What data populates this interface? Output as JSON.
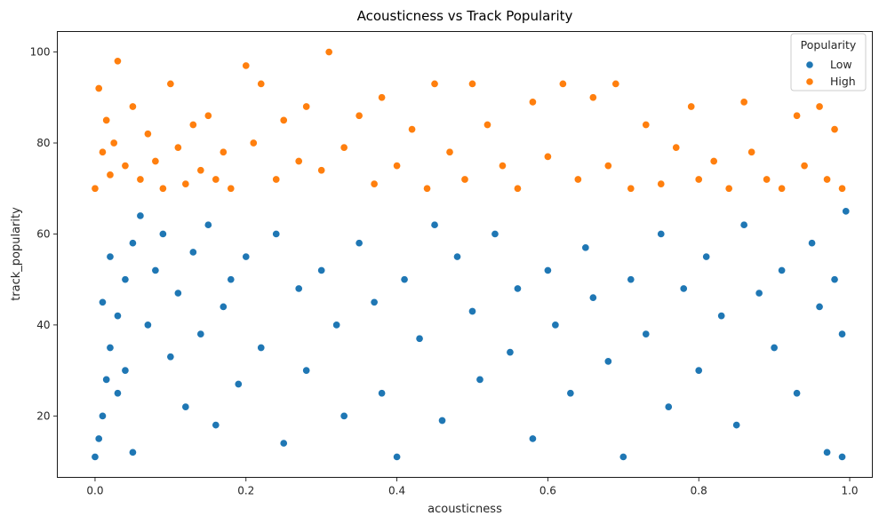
{
  "chart_data": {
    "type": "scatter",
    "title": "Acousticness vs Track Popularity",
    "xlabel": "acousticness",
    "ylabel": "track_popularity",
    "xlim": [
      -0.05,
      1.03
    ],
    "ylim": [
      6.5,
      104.5
    ],
    "xticks": [
      0.0,
      0.2,
      0.4,
      0.6,
      0.8,
      1.0
    ],
    "xtick_labels": [
      "0.0",
      "0.2",
      "0.4",
      "0.6",
      "0.8",
      "1.0"
    ],
    "yticks": [
      20,
      40,
      60,
      80,
      100
    ],
    "ytick_labels": [
      "20",
      "40",
      "60",
      "80",
      "100"
    ],
    "grid": false,
    "legend": {
      "title": "Popularity",
      "placement": "top-right",
      "entries": [
        {
          "label": "Low",
          "color": "#1f77b4"
        },
        {
          "label": "High",
          "color": "#ff7f0e"
        }
      ]
    },
    "series": [
      {
        "name": "Low",
        "color": "#1f77b4",
        "points": [
          [
            0.0,
            11
          ],
          [
            0.005,
            15
          ],
          [
            0.01,
            20
          ],
          [
            0.015,
            28
          ],
          [
            0.02,
            35
          ],
          [
            0.03,
            42
          ],
          [
            0.04,
            50
          ],
          [
            0.05,
            58
          ],
          [
            0.06,
            64
          ],
          [
            0.01,
            45
          ],
          [
            0.02,
            55
          ],
          [
            0.03,
            25
          ],
          [
            0.04,
            30
          ],
          [
            0.05,
            12
          ],
          [
            0.07,
            40
          ],
          [
            0.08,
            52
          ],
          [
            0.09,
            60
          ],
          [
            0.1,
            33
          ],
          [
            0.11,
            47
          ],
          [
            0.12,
            22
          ],
          [
            0.13,
            56
          ],
          [
            0.14,
            38
          ],
          [
            0.15,
            62
          ],
          [
            0.16,
            18
          ],
          [
            0.17,
            44
          ],
          [
            0.18,
            50
          ],
          [
            0.19,
            27
          ],
          [
            0.2,
            55
          ],
          [
            0.22,
            35
          ],
          [
            0.24,
            60
          ],
          [
            0.25,
            14
          ],
          [
            0.27,
            48
          ],
          [
            0.28,
            30
          ],
          [
            0.3,
            52
          ],
          [
            0.32,
            40
          ],
          [
            0.33,
            20
          ],
          [
            0.35,
            58
          ],
          [
            0.37,
            45
          ],
          [
            0.38,
            25
          ],
          [
            0.4,
            11
          ],
          [
            0.41,
            50
          ],
          [
            0.43,
            37
          ],
          [
            0.45,
            62
          ],
          [
            0.46,
            19
          ],
          [
            0.48,
            55
          ],
          [
            0.5,
            43
          ],
          [
            0.51,
            28
          ],
          [
            0.53,
            60
          ],
          [
            0.55,
            34
          ],
          [
            0.56,
            48
          ],
          [
            0.58,
            15
          ],
          [
            0.6,
            52
          ],
          [
            0.61,
            40
          ],
          [
            0.63,
            25
          ],
          [
            0.65,
            57
          ],
          [
            0.66,
            46
          ],
          [
            0.68,
            32
          ],
          [
            0.7,
            11
          ],
          [
            0.71,
            50
          ],
          [
            0.73,
            38
          ],
          [
            0.75,
            60
          ],
          [
            0.76,
            22
          ],
          [
            0.78,
            48
          ],
          [
            0.8,
            30
          ],
          [
            0.81,
            55
          ],
          [
            0.83,
            42
          ],
          [
            0.85,
            18
          ],
          [
            0.86,
            62
          ],
          [
            0.88,
            47
          ],
          [
            0.9,
            35
          ],
          [
            0.91,
            52
          ],
          [
            0.93,
            25
          ],
          [
            0.95,
            58
          ],
          [
            0.96,
            44
          ],
          [
            0.97,
            12
          ],
          [
            0.98,
            50
          ],
          [
            0.99,
            38
          ],
          [
            0.995,
            65
          ],
          [
            0.99,
            11
          ]
        ]
      },
      {
        "name": "High",
        "color": "#ff7f0e",
        "points": [
          [
            0.0,
            70
          ],
          [
            0.005,
            92
          ],
          [
            0.01,
            78
          ],
          [
            0.015,
            85
          ],
          [
            0.02,
            73
          ],
          [
            0.025,
            80
          ],
          [
            0.03,
            98
          ],
          [
            0.04,
            75
          ],
          [
            0.05,
            88
          ],
          [
            0.06,
            72
          ],
          [
            0.07,
            82
          ],
          [
            0.08,
            76
          ],
          [
            0.09,
            70
          ],
          [
            0.1,
            93
          ],
          [
            0.11,
            79
          ],
          [
            0.12,
            71
          ],
          [
            0.13,
            84
          ],
          [
            0.14,
            74
          ],
          [
            0.15,
            86
          ],
          [
            0.16,
            72
          ],
          [
            0.17,
            78
          ],
          [
            0.18,
            70
          ],
          [
            0.2,
            97
          ],
          [
            0.21,
            80
          ],
          [
            0.22,
            93
          ],
          [
            0.24,
            72
          ],
          [
            0.25,
            85
          ],
          [
            0.27,
            76
          ],
          [
            0.28,
            88
          ],
          [
            0.3,
            74
          ],
          [
            0.31,
            100
          ],
          [
            0.33,
            79
          ],
          [
            0.35,
            86
          ],
          [
            0.37,
            71
          ],
          [
            0.38,
            90
          ],
          [
            0.4,
            75
          ],
          [
            0.42,
            83
          ],
          [
            0.44,
            70
          ],
          [
            0.45,
            93
          ],
          [
            0.47,
            78
          ],
          [
            0.49,
            72
          ],
          [
            0.5,
            93
          ],
          [
            0.52,
            84
          ],
          [
            0.54,
            75
          ],
          [
            0.56,
            70
          ],
          [
            0.58,
            89
          ],
          [
            0.6,
            77
          ],
          [
            0.62,
            93
          ],
          [
            0.64,
            72
          ],
          [
            0.66,
            90
          ],
          [
            0.68,
            75
          ],
          [
            0.69,
            93
          ],
          [
            0.71,
            70
          ],
          [
            0.73,
            84
          ],
          [
            0.75,
            71
          ],
          [
            0.77,
            79
          ],
          [
            0.79,
            88
          ],
          [
            0.8,
            72
          ],
          [
            0.82,
            76
          ],
          [
            0.84,
            70
          ],
          [
            0.86,
            89
          ],
          [
            0.87,
            78
          ],
          [
            0.89,
            72
          ],
          [
            0.91,
            70
          ],
          [
            0.93,
            86
          ],
          [
            0.94,
            75
          ],
          [
            0.96,
            88
          ],
          [
            0.97,
            72
          ],
          [
            0.98,
            83
          ],
          [
            0.99,
            70
          ]
        ]
      }
    ]
  }
}
